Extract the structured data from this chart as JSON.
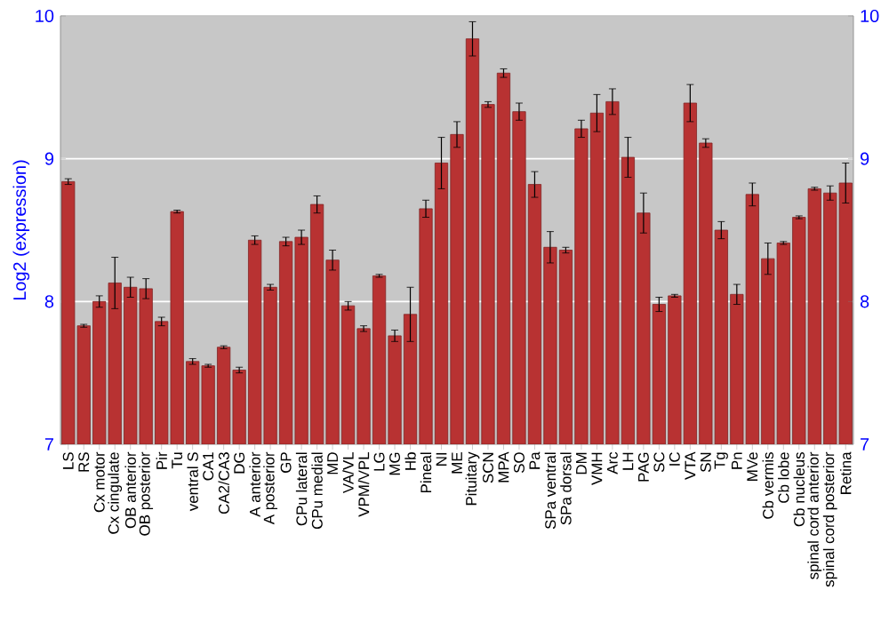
{
  "chart_data": {
    "type": "bar",
    "ylabel": "Log2 (expression)",
    "categories": [
      "LS",
      "RS",
      "Cx motor",
      "Cx cingulate",
      "OB anterior",
      "OB posterior",
      "Pir",
      "Tu",
      "ventral S",
      "CA1",
      "CA2/CA3",
      "DG",
      "A anterior",
      "A posterior",
      "GP",
      "CPu lateral",
      "CPu medial",
      "MD",
      "VA/VL",
      "VPM/VPL",
      "LG",
      "MG",
      "Hb",
      "Pineal",
      "NI",
      "ME",
      "Pituitary",
      "SCN",
      "MPA",
      "SO",
      "Pa",
      "SPa ventral",
      "SPa dorsal",
      "DM",
      "VMH",
      "Arc",
      "LH",
      "PAG",
      "SC",
      "IC",
      "VTA",
      "SN",
      "Tg",
      "Pn",
      "MVe",
      "Cb vermis",
      "Cb lobe",
      "Cb nucleus",
      "spinal cord anterior",
      "spinal cord posterior",
      "Retina"
    ],
    "values": [
      8.84,
      7.83,
      8.0,
      8.13,
      8.1,
      8.09,
      7.86,
      8.63,
      7.58,
      7.55,
      7.68,
      7.52,
      8.43,
      8.1,
      8.42,
      8.45,
      8.68,
      8.29,
      7.97,
      7.81,
      8.18,
      7.76,
      7.91,
      8.65,
      8.97,
      9.17,
      9.84,
      9.38,
      9.6,
      9.33,
      8.82,
      8.38,
      8.36,
      9.21,
      9.32,
      9.4,
      9.01,
      8.62,
      7.98,
      8.04,
      9.39,
      9.11,
      8.5,
      8.05,
      8.75,
      8.3,
      8.41,
      8.59,
      8.79,
      8.76,
      8.83
    ],
    "errors": [
      0.02,
      0.01,
      0.04,
      0.18,
      0.07,
      0.07,
      0.03,
      0.01,
      0.02,
      0.01,
      0.01,
      0.02,
      0.03,
      0.02,
      0.03,
      0.05,
      0.06,
      0.07,
      0.03,
      0.02,
      0.01,
      0.04,
      0.19,
      0.06,
      0.18,
      0.09,
      0.12,
      0.02,
      0.03,
      0.06,
      0.09,
      0.11,
      0.02,
      0.06,
      0.13,
      0.09,
      0.14,
      0.14,
      0.05,
      0.01,
      0.13,
      0.03,
      0.06,
      0.07,
      0.08,
      0.11,
      0.01,
      0.01,
      0.01,
      0.05,
      0.14
    ],
    "color": "#b83232",
    "ylim": [
      7,
      10
    ],
    "yticks": [
      7,
      8,
      9,
      10
    ],
    "y2lim": [
      7,
      10
    ],
    "y2ticks": [
      7,
      8,
      9,
      10
    ],
    "grid": "y"
  }
}
